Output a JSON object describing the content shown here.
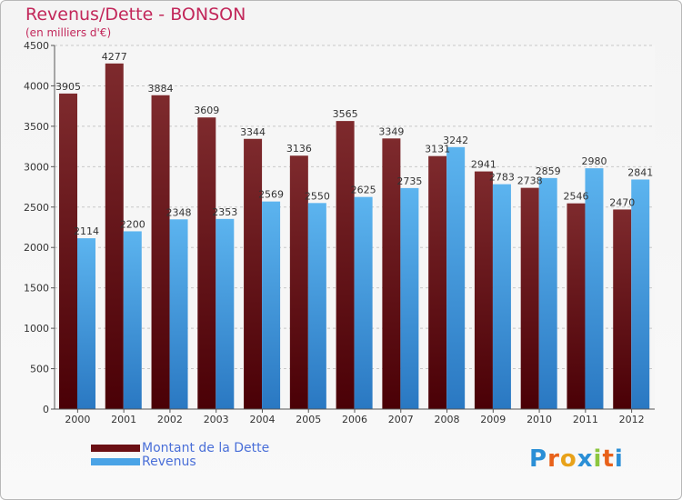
{
  "title": "Revenus/Dette - BONSON",
  "subtitle": "(en milliers d'€)",
  "logo": {
    "text": "Proxiti",
    "letter_colors": [
      "#2b8fd6",
      "#e8611a",
      "#e8a21a",
      "#2b8fd6",
      "#8cc63f",
      "#e8611a",
      "#2b8fd6"
    ]
  },
  "legend": [
    {
      "label": "Montant de la Dette",
      "color": "#6b0f14"
    },
    {
      "label": "Revenus",
      "color": "#4aa3e6"
    }
  ],
  "chart_data": {
    "type": "bar",
    "title": "Revenus/Dette - BONSON",
    "subtitle": "(en milliers d'€)",
    "xlabel": "",
    "ylabel": "",
    "ylim": [
      0,
      4500
    ],
    "yticks": [
      0,
      500,
      1000,
      1500,
      2000,
      2500,
      3000,
      3500,
      4000,
      4500
    ],
    "grid": true,
    "legend_position": "bottom-left",
    "categories": [
      "2000",
      "2001",
      "2002",
      "2003",
      "2004",
      "2005",
      "2006",
      "2007",
      "2008",
      "2009",
      "2010",
      "2011",
      "2012"
    ],
    "series": [
      {
        "name": "Montant de la Dette",
        "color": "#6b0f14",
        "values": [
          3905,
          4277,
          3884,
          3609,
          3344,
          3136,
          3565,
          3349,
          3131,
          2941,
          2738,
          2546,
          2470
        ]
      },
      {
        "name": "Revenus",
        "color": "#4aa3e6",
        "values": [
          2114,
          2200,
          2348,
          2353,
          2569,
          2550,
          2625,
          2735,
          3242,
          2783,
          2859,
          2980,
          2841
        ]
      }
    ]
  }
}
